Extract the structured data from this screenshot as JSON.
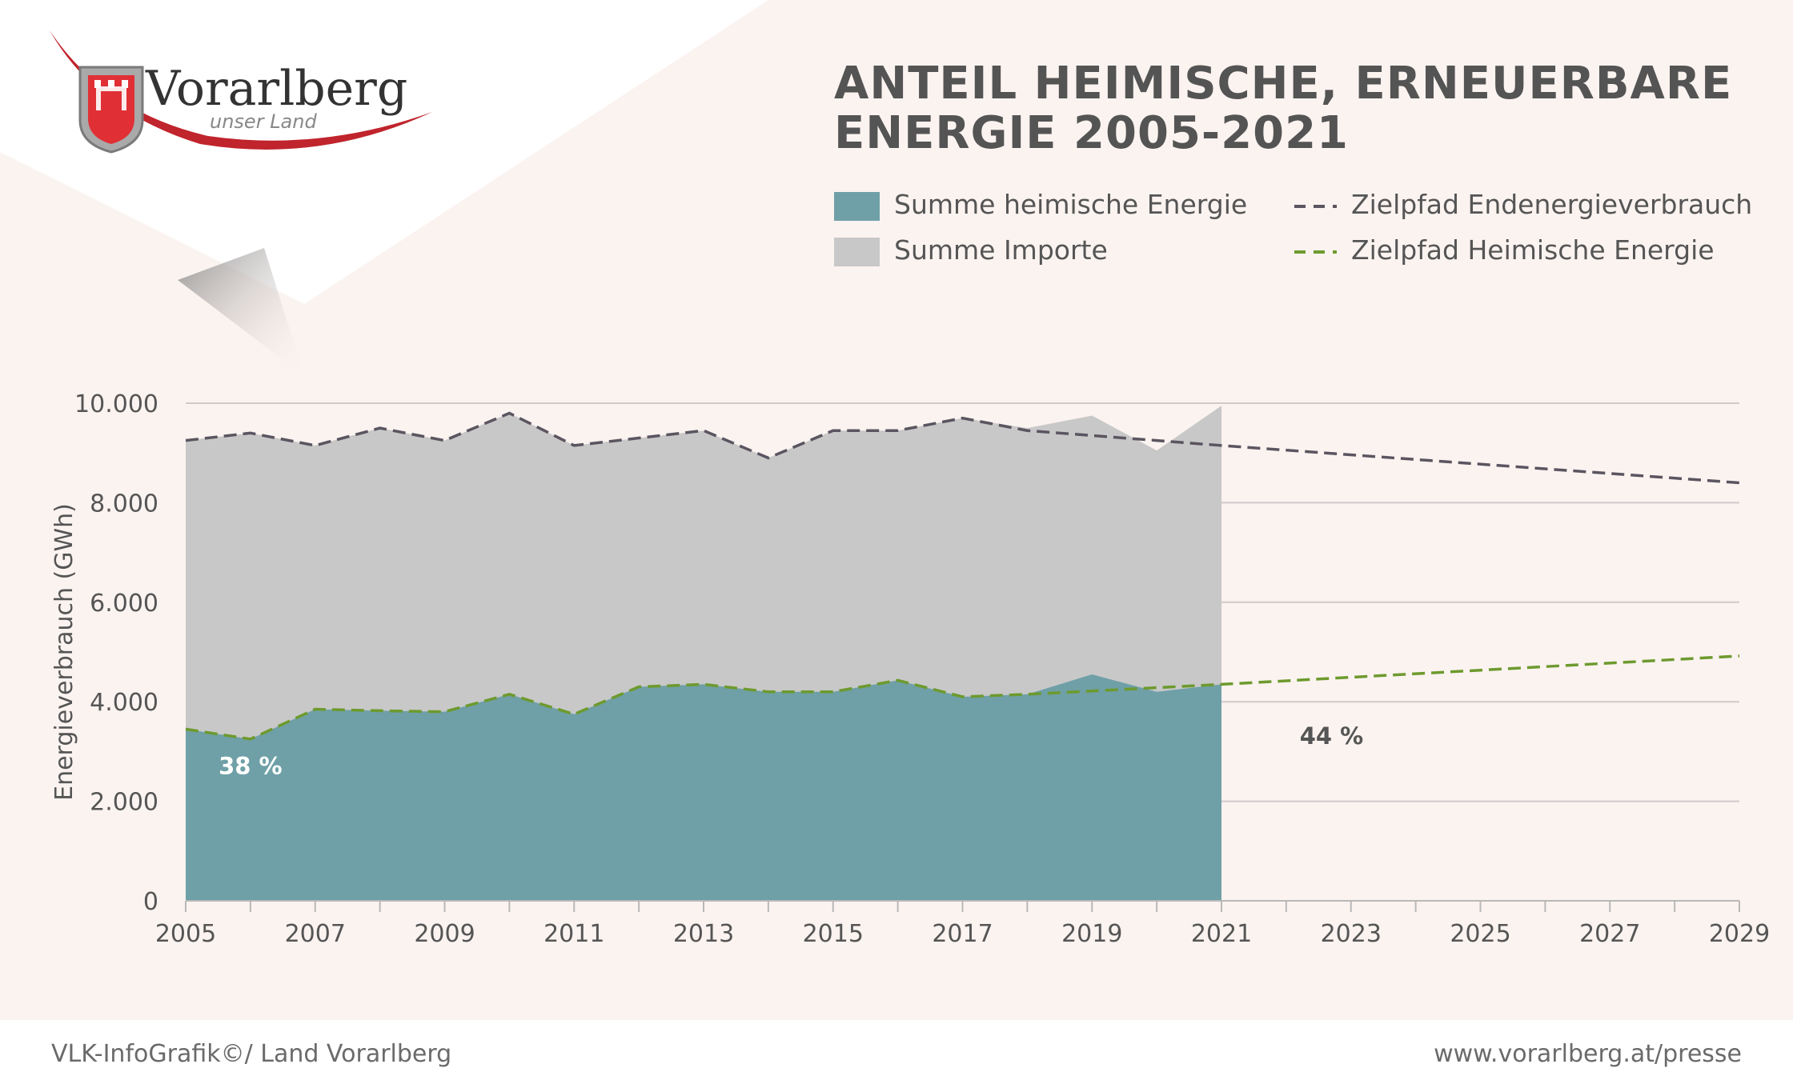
{
  "logo": {
    "name": "Vorarlberg",
    "subtitle": "unser Land"
  },
  "title": {
    "line1": "ANTEIL HEIMISCHE, ERNEUERBARE",
    "line2": "ENERGIE 2005-2021"
  },
  "legend": {
    "heimisch": "Summe heimische Energie",
    "importe": "Summe Importe",
    "zielpfad_end": "Zielpfad Endenergieverbrauch",
    "zielpfad_heim": "Zielpfad Heimische Energie"
  },
  "footer": {
    "left": "VLK-InfoGrafik©/ Land Vorarlberg",
    "right": "www.vorarlberg.at/presse"
  },
  "colors": {
    "heimisch": "#6fa0a7",
    "importe": "#c8c8c8",
    "zielpfad_end": "#5a5560",
    "zielpfad_heim": "#6d9a2e",
    "grid": "#cfcbcb",
    "axis_text": "#555555"
  },
  "chart_data": {
    "type": "area",
    "title": "ANTEIL HEIMISCHE, ERNEUERBARE ENERGIE 2005-2021",
    "xlabel": "",
    "ylabel": "Energieverbrauch (GWh)",
    "xlim": [
      2005,
      2029
    ],
    "ylim": [
      0,
      10000
    ],
    "yticks": [
      0,
      2000,
      4000,
      6000,
      8000,
      10000
    ],
    "ytick_labels": [
      "0",
      "2.000",
      "4.000",
      "6.000",
      "8.000",
      "10.000"
    ],
    "xticks": [
      2005,
      2007,
      2009,
      2011,
      2013,
      2015,
      2017,
      2019,
      2021,
      2023,
      2025,
      2027,
      2029
    ],
    "xtick_labels": [
      "2005",
      "2007",
      "2009",
      "2011",
      "2013",
      "2015",
      "2017",
      "2019",
      "2021",
      "2023",
      "2025",
      "2027",
      "2029"
    ],
    "grid": true,
    "years": [
      2005,
      2006,
      2007,
      2008,
      2009,
      2010,
      2011,
      2012,
      2013,
      2014,
      2015,
      2016,
      2017,
      2018,
      2019,
      2020,
      2021
    ],
    "series": [
      {
        "name": "Summe heimische Energie",
        "type": "area",
        "values": [
          3450,
          3250,
          3850,
          3820,
          3800,
          4150,
          3750,
          4300,
          4350,
          4200,
          4200,
          4430,
          4100,
          4150,
          4550,
          4200,
          4350
        ]
      },
      {
        "name": "Summe Importe",
        "type": "area-stacked-total",
        "values": [
          9250,
          9400,
          9150,
          9500,
          9250,
          9800,
          9150,
          9300,
          9450,
          8900,
          9450,
          9450,
          9700,
          9500,
          9750,
          9050,
          9950
        ]
      },
      {
        "name": "Zielpfad Endenergieverbrauch",
        "type": "dashed-line",
        "x": [
          2005,
          2006,
          2007,
          2008,
          2009,
          2010,
          2011,
          2012,
          2013,
          2014,
          2015,
          2016,
          2017,
          2018,
          2019,
          2021,
          2029
        ],
        "values": [
          9250,
          9400,
          9150,
          9500,
          9250,
          9800,
          9150,
          9300,
          9450,
          8900,
          9450,
          9450,
          9700,
          9450,
          9350,
          9150,
          8400
        ]
      },
      {
        "name": "Zielpfad Heimische Energie",
        "type": "dashed-line",
        "x": [
          2005,
          2006,
          2007,
          2008,
          2009,
          2010,
          2011,
          2012,
          2013,
          2014,
          2015,
          2016,
          2017,
          2018,
          2021,
          2029
        ],
        "values": [
          3450,
          3250,
          3850,
          3820,
          3800,
          4150,
          3750,
          4300,
          4350,
          4200,
          4200,
          4430,
          4100,
          4150,
          4350,
          4920
        ]
      }
    ],
    "annotations": [
      {
        "text": "38 %",
        "x": 2006,
        "y": 2550,
        "color": "#ffffff"
      },
      {
        "text": "44 %",
        "x": 2022.7,
        "y": 3150,
        "color": "#555555"
      }
    ]
  }
}
